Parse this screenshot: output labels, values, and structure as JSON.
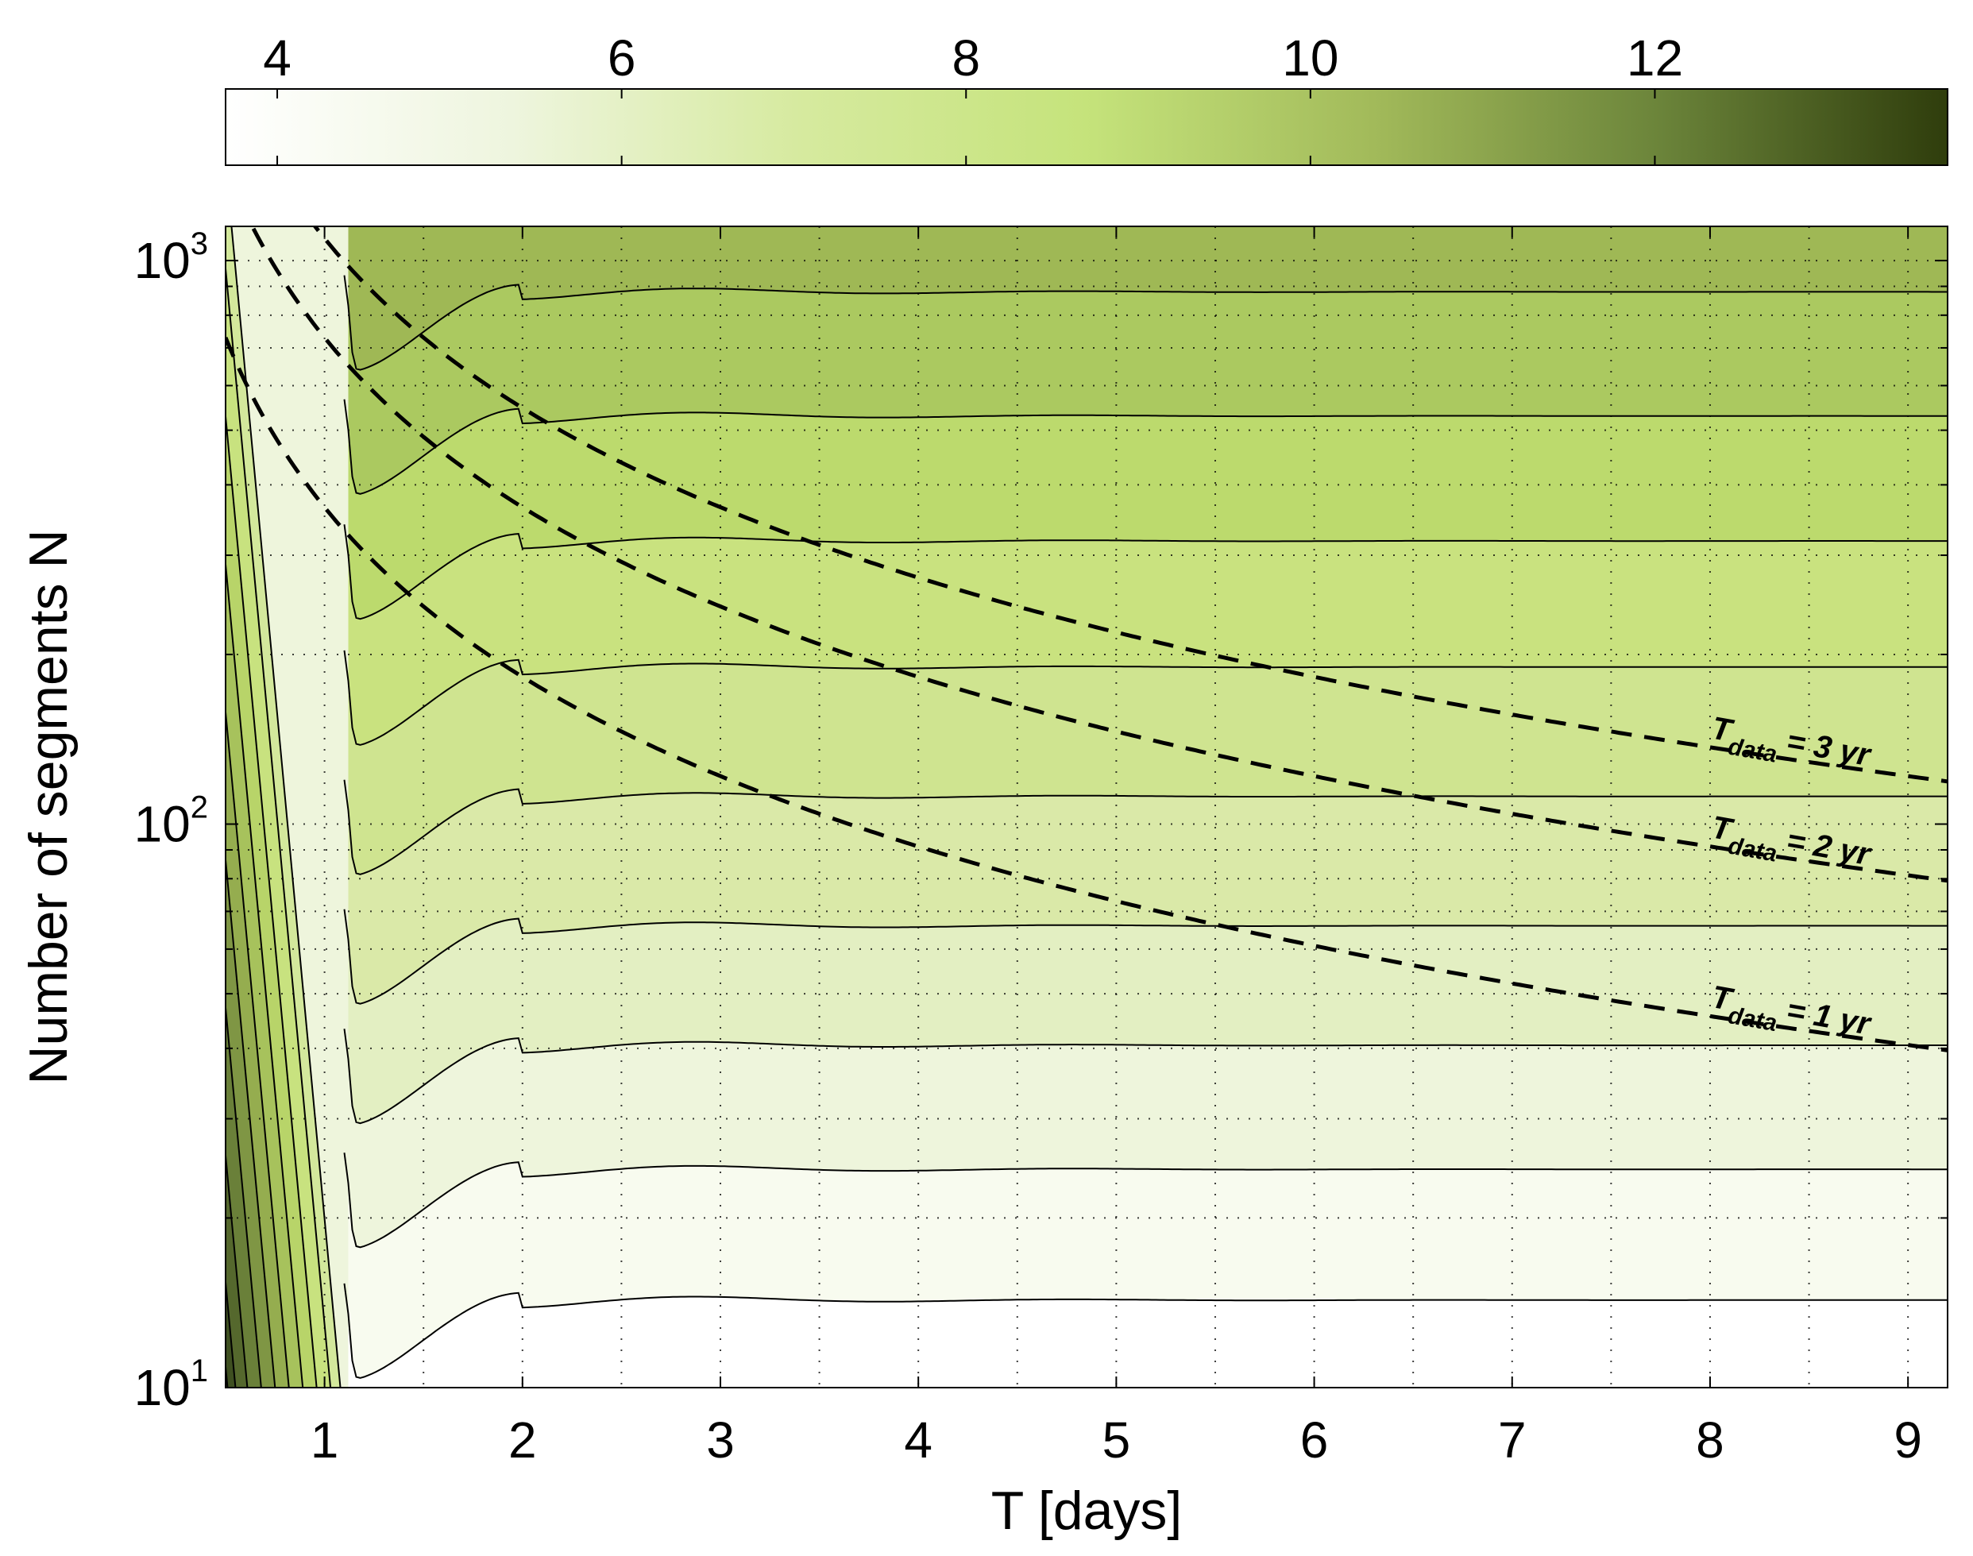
{
  "chart_data": {
    "type": "contour",
    "xlabel": "T [days]",
    "ylabel": "Number of segments N",
    "xlim": [
      0.5,
      9.2
    ],
    "ylim": [
      10,
      1150
    ],
    "yscale": "log",
    "grid": "on (dotted)",
    "x_ticks": [
      {
        "value": 1,
        "label": "1"
      },
      {
        "value": 2,
        "label": "2"
      },
      {
        "value": 3,
        "label": "3"
      },
      {
        "value": 4,
        "label": "4"
      },
      {
        "value": 5,
        "label": "5"
      },
      {
        "value": 6,
        "label": "6"
      },
      {
        "value": 7,
        "label": "7"
      },
      {
        "value": 8,
        "label": "8"
      },
      {
        "value": 9,
        "label": "9"
      }
    ],
    "y_ticks": [
      {
        "value": 10,
        "base": "10",
        "exp": "1"
      },
      {
        "value": 100,
        "base": "10",
        "exp": "2"
      },
      {
        "value": 1000,
        "base": "10",
        "exp": "3"
      }
    ],
    "colorbar": {
      "range": [
        3.7,
        13.7
      ],
      "ticks": [
        {
          "value": 4,
          "label": "4"
        },
        {
          "value": 6,
          "label": "6"
        },
        {
          "value": 8,
          "label": "8"
        },
        {
          "value": 10,
          "label": "10"
        },
        {
          "value": 12,
          "label": "12"
        }
      ],
      "colors": [
        "#ffffff",
        "#eef5de",
        "#d6ea9f",
        "#c5e37b",
        "#a2ba5a",
        "#6b843a",
        "#2f3d0c"
      ]
    },
    "contour_levels_N": [
      14.3,
      24.4,
      40.5,
      66.0,
      112.0,
      190.0,
      318.0,
      530.0,
      880.0
    ],
    "level_colors": [
      "#f8fbef",
      "#eef5dc",
      "#e3efc2",
      "#dae9a8",
      "#cfe490",
      "#c9e27f",
      "#bcda6d",
      "#abc960",
      "#9fb855"
    ],
    "data_lengths": [
      {
        "years": 1,
        "label": {
          "base": "T",
          "sub": "data",
          "rest": "= 1 yr"
        },
        "constant": 365
      },
      {
        "years": 2,
        "label": {
          "base": "T",
          "sub": "data",
          "rest": "= 2 yr"
        },
        "constant": 730
      },
      {
        "years": 3,
        "label": {
          "base": "T",
          "sub": "data",
          "rest": "= 3 yr"
        },
        "constant": 1095
      }
    ]
  }
}
